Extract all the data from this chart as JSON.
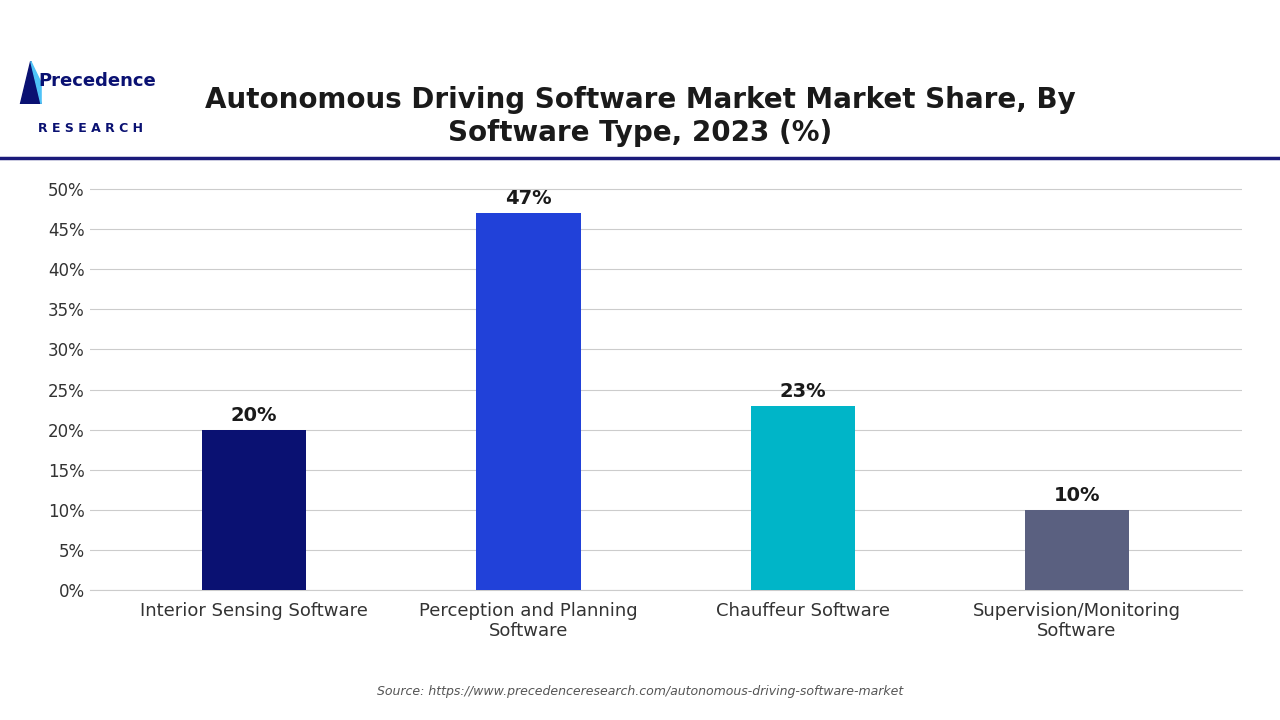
{
  "title": "Autonomous Driving Software Market Market Share, By\nSoftware Type, 2023 (%)",
  "categories": [
    "Interior Sensing Software",
    "Perception and Planning\nSoftware",
    "Chauffeur Software",
    "Supervision/Monitoring\nSoftware"
  ],
  "values": [
    20,
    47,
    23,
    10
  ],
  "bar_colors": [
    "#0a1172",
    "#2141d9",
    "#00b5c8",
    "#5a6080"
  ],
  "bar_labels": [
    "20%",
    "47%",
    "23%",
    "10%"
  ],
  "ylim": [
    0,
    52
  ],
  "yticks": [
    0,
    5,
    10,
    15,
    20,
    25,
    30,
    35,
    40,
    45,
    50
  ],
  "ytick_labels": [
    "0%",
    "5%",
    "10%",
    "15%",
    "20%",
    "25%",
    "30%",
    "35%",
    "40%",
    "45%",
    "50%"
  ],
  "source_text": "Source: https://www.precedenceresearch.com/autonomous-driving-software-market",
  "background_color": "#ffffff",
  "plot_bg_color": "#ffffff",
  "title_fontsize": 20,
  "label_fontsize": 13,
  "tick_fontsize": 12,
  "source_fontsize": 9,
  "bar_label_fontsize": 14,
  "title_color": "#1a1a1a",
  "tick_color": "#333333",
  "grid_color": "#cccccc",
  "divider_color": "#1a1a7a",
  "logo_color": "#0a1172"
}
